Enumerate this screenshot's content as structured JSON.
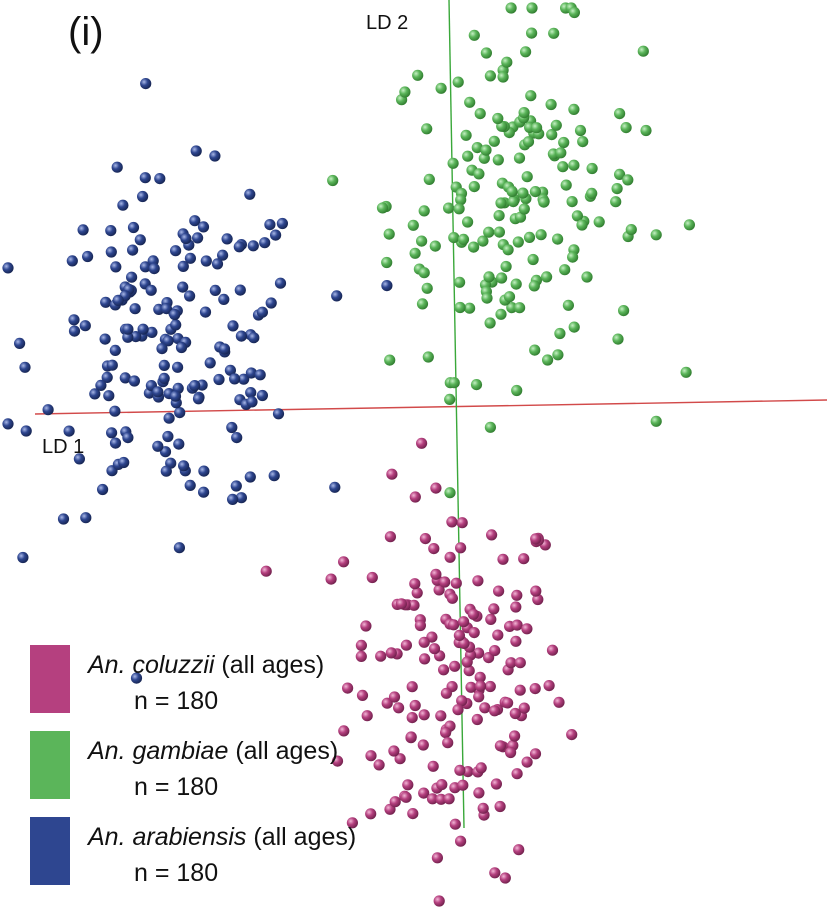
{
  "panel_label": "(i)",
  "chart_data": {
    "type": "scatter",
    "title": "",
    "xlabel": "LD 1",
    "ylabel": "LD 2",
    "xlim": [
      -4,
      5
    ],
    "ylim": [
      -5,
      4.5
    ],
    "grid": false,
    "legend_placement": "bottom-left",
    "series": [
      {
        "name": "An. coluzzii",
        "suffix": "(all ages)",
        "n_label": "n = 180",
        "color": "#b5407f",
        "center": [
          0.9,
          -2.8
        ],
        "spread": [
          0.65,
          1.05
        ]
      },
      {
        "name": "An. gambiae",
        "suffix": "(all ages)",
        "n_label": "n = 180",
        "color": "#5bb55a",
        "center": [
          1.6,
          2.5
        ],
        "spread": [
          0.75,
          0.95
        ]
      },
      {
        "name": "An. arabiensis",
        "suffix": "(all ages)",
        "n_label": "n = 180",
        "color": "#2e4690",
        "center": [
          -2.45,
          0.85
        ],
        "spread": [
          0.8,
          0.9
        ]
      }
    ]
  }
}
